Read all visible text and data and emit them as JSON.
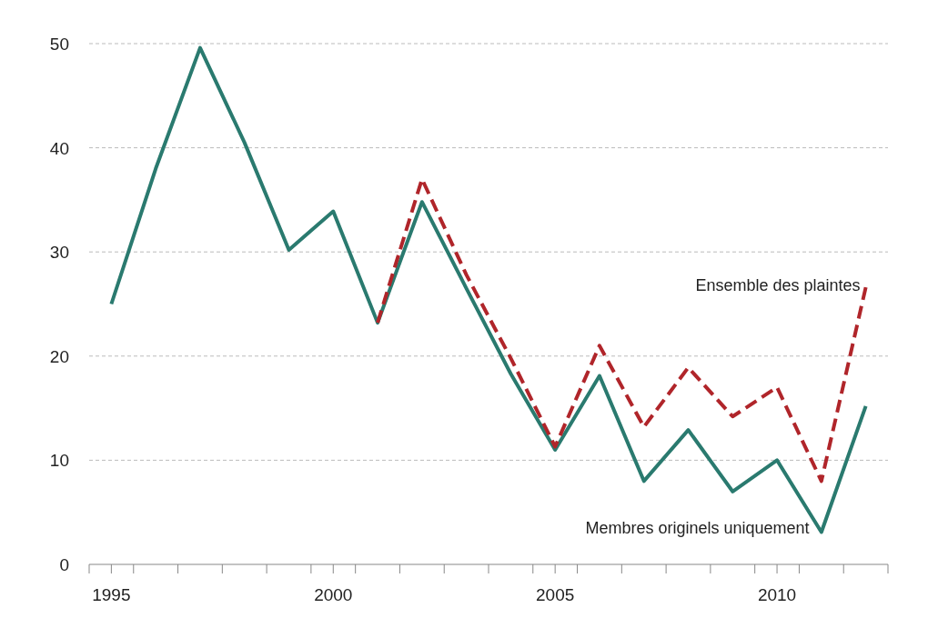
{
  "chart_data": {
    "type": "line",
    "x": [
      1995,
      1996,
      1997,
      1998,
      1999,
      2000,
      2001,
      2002,
      2003,
      2004,
      2005,
      2006,
      2007,
      2008,
      2009,
      2010,
      2011,
      2012
    ],
    "xlim": [
      1994.5,
      2012.5
    ],
    "xticks": [
      {
        "value": 1994.5,
        "label": null
      },
      1995,
      {
        "value": 1995.5,
        "label": null
      },
      {
        "value": 1996.5,
        "label": null
      },
      {
        "value": 1997.5,
        "label": null
      },
      {
        "value": 1998.5,
        "label": null
      },
      {
        "value": 1999.5,
        "label": null
      },
      2000,
      {
        "value": 2000.5,
        "label": null
      },
      {
        "value": 2001.5,
        "label": null
      },
      {
        "value": 2002.5,
        "label": null
      },
      {
        "value": 2003.5,
        "label": null
      },
      {
        "value": 2004.5,
        "label": null
      },
      2005,
      {
        "value": 2005.5,
        "label": null
      },
      {
        "value": 2006.5,
        "label": null
      },
      {
        "value": 2007.5,
        "label": null
      },
      {
        "value": 2008.5,
        "label": null
      },
      {
        "value": 2009.5,
        "label": null
      },
      2010,
      {
        "value": 2010.5,
        "label": null
      },
      {
        "value": 2011.5,
        "label": null
      },
      {
        "value": 2012.5,
        "label": null
      }
    ],
    "ylim": [
      0,
      50
    ],
    "yticks": [
      0,
      10,
      20,
      30,
      40,
      50
    ],
    "grid": "y",
    "series": [
      {
        "name": "Ensemble des plaintes",
        "color": "#b0252a",
        "line_style": "dashed",
        "values": [
          null,
          null,
          null,
          null,
          null,
          null,
          23.2,
          37,
          27.8,
          19.8,
          11.3,
          21,
          13.2,
          18.9,
          14.2,
          17,
          8,
          26.6
        ]
      },
      {
        "name": "Membres originels uniquement",
        "color": "#2a7a6f",
        "line_style": "solid",
        "values": [
          25,
          38,
          49.6,
          40.5,
          30.2,
          33.9,
          23.2,
          34.8,
          26.5,
          18.3,
          11,
          18.1,
          8,
          12.9,
          7,
          10,
          3.1,
          15.2
        ]
      }
    ]
  }
}
